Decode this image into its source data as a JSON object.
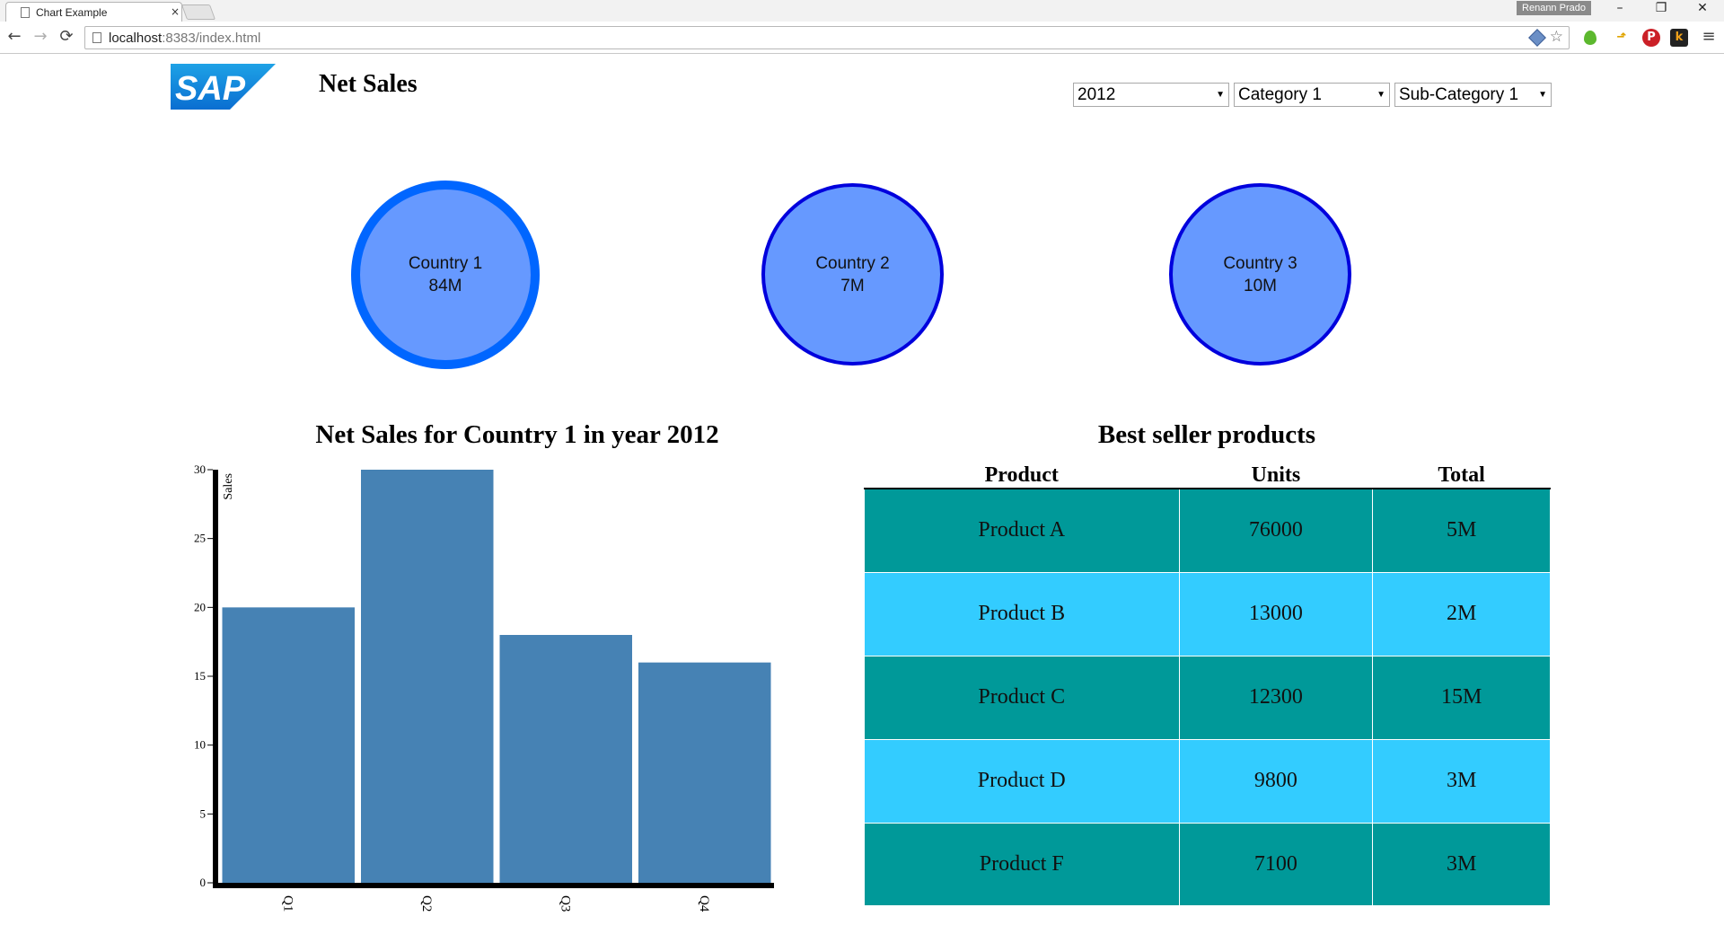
{
  "browser": {
    "tab_title": "Chart Example",
    "tab_close": "×",
    "profile_name": "Renann Prado",
    "url_host": "localhost",
    "url_rest": ":8383/index.html",
    "nav_back": "←",
    "nav_forward": "→",
    "nav_reload": "⟳",
    "win_minimize": "–",
    "win_restore": "❐",
    "win_close": "✕",
    "bookmark_star": "☆",
    "menu": "≡",
    "ext_arrow": "⬏",
    "ext_pinterest": "P",
    "ext_k": "k"
  },
  "header": {
    "logo_text": "SAP",
    "title": "Net Sales"
  },
  "filters": {
    "year": "2012",
    "category": "Category 1",
    "subcategory": "Sub-Category 1",
    "arrow": "▼"
  },
  "countries": [
    {
      "name": "Country 1",
      "value": "84M"
    },
    {
      "name": "Country 2",
      "value": "7M"
    },
    {
      "name": "Country 3",
      "value": "10M"
    }
  ],
  "colors": {
    "circle_fill": "#6699ff",
    "circle_selected_border": "#0066ff",
    "circle_border": "#0000dd",
    "bar": "#4682b4",
    "row_odd": "#009999",
    "row_even": "#33ccff"
  },
  "chart_data": {
    "type": "bar",
    "title": "Net Sales for Country 1 in year 2012",
    "categories": [
      "Q1",
      "Q2",
      "Q3",
      "Q4"
    ],
    "values": [
      20,
      30,
      18,
      16
    ],
    "ylabel": "Sales",
    "xlabel": "",
    "ylim": [
      0,
      30
    ],
    "yticks": [
      0,
      5,
      10,
      15,
      20,
      25,
      30
    ],
    "grid": false,
    "legend": "none"
  },
  "table": {
    "title": "Best seller products",
    "headers": [
      "Product",
      "Units",
      "Total"
    ],
    "rows": [
      [
        "Product A",
        "76000",
        "5M"
      ],
      [
        "Product B",
        "13000",
        "2M"
      ],
      [
        "Product C",
        "12300",
        "15M"
      ],
      [
        "Product D",
        "9800",
        "3M"
      ],
      [
        "Product F",
        "7100",
        "3M"
      ]
    ]
  }
}
